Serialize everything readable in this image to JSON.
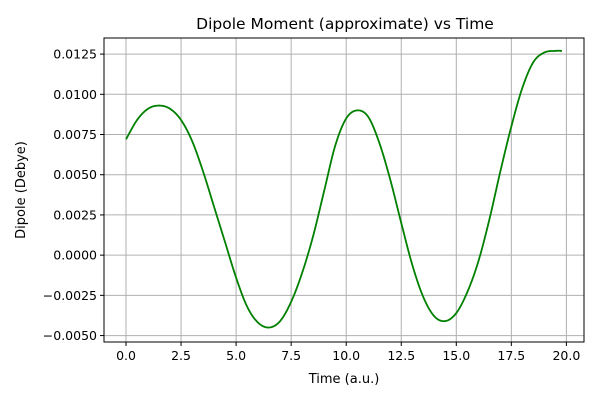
{
  "chart_data": {
    "type": "line",
    "title": "Dipole Moment (approximate) vs Time",
    "xlabel": "Time (a.u.)",
    "ylabel": "Dipole (Debye)",
    "xlim": [
      -1.0,
      20.8
    ],
    "ylim": [
      -0.0054,
      0.0135
    ],
    "xticks": [
      0.0,
      2.5,
      5.0,
      7.5,
      10.0,
      12.5,
      15.0,
      17.5,
      20.0
    ],
    "xtick_labels": [
      "0.0",
      "2.5",
      "5.0",
      "7.5",
      "10.0",
      "12.5",
      "15.0",
      "17.5",
      "20.0"
    ],
    "yticks": [
      -0.005,
      -0.0025,
      0.0,
      0.0025,
      0.005,
      0.0075,
      0.01,
      0.0125
    ],
    "ytick_labels": [
      "−0.0050",
      "−0.0025",
      "0.0000",
      "0.0025",
      "0.0050",
      "0.0075",
      "0.0100",
      "0.0125"
    ],
    "grid": true,
    "color": "#008000",
    "series": [
      {
        "x": [
          0.0,
          0.5,
          1.0,
          1.5,
          2.0,
          2.5,
          3.0,
          3.5,
          4.0,
          4.5,
          5.0,
          5.5,
          6.0,
          6.5,
          7.0,
          7.5,
          8.0,
          8.5,
          9.0,
          9.5,
          10.0,
          10.5,
          11.0,
          11.5,
          12.0,
          12.5,
          13.0,
          13.5,
          14.0,
          14.5,
          15.0,
          15.5,
          16.0,
          16.5,
          17.0,
          17.5,
          18.0,
          18.5,
          19.0,
          19.5,
          19.8
        ],
        "y": [
          0.0072,
          0.0084,
          0.0091,
          0.0093,
          0.0091,
          0.0084,
          0.0071,
          0.0052,
          0.003,
          0.0008,
          -0.0014,
          -0.0032,
          -0.0042,
          -0.0045,
          -0.0041,
          -0.0029,
          -0.0011,
          0.0012,
          0.004,
          0.0068,
          0.0085,
          0.009,
          0.0086,
          0.007,
          0.0047,
          0.002,
          -0.0006,
          -0.0026,
          -0.0038,
          -0.0041,
          -0.0036,
          -0.0023,
          -0.0004,
          0.0022,
          0.0052,
          0.008,
          0.0104,
          0.012,
          0.0126,
          0.0127,
          0.0127
        ]
      }
    ]
  }
}
